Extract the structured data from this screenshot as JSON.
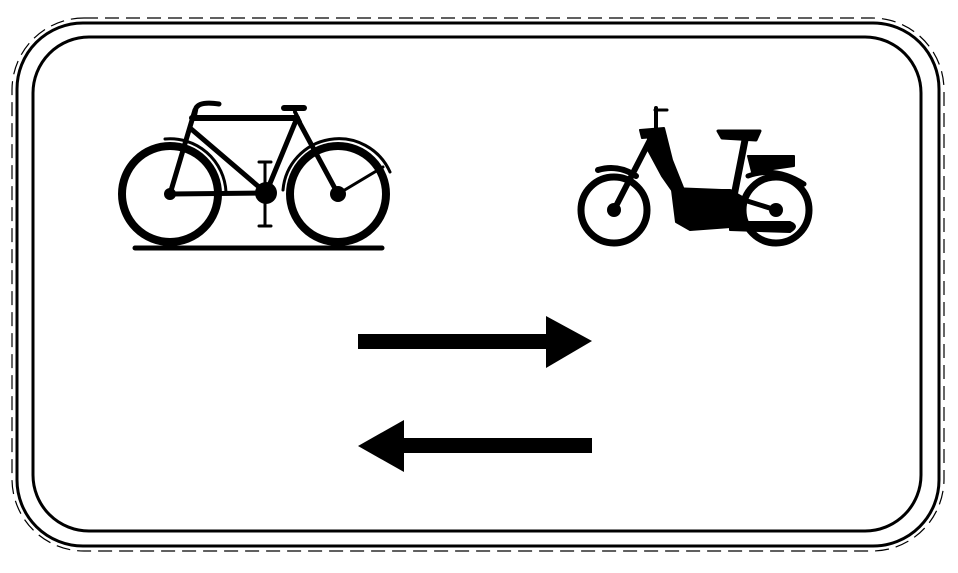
{
  "sign": {
    "symbols": [
      "bicycle-icon",
      "moped-icon",
      "arrow-right-icon",
      "arrow-left-icon"
    ],
    "colors": {
      "background": "#ffffff",
      "symbol": "#000000",
      "border": "#000000"
    }
  }
}
